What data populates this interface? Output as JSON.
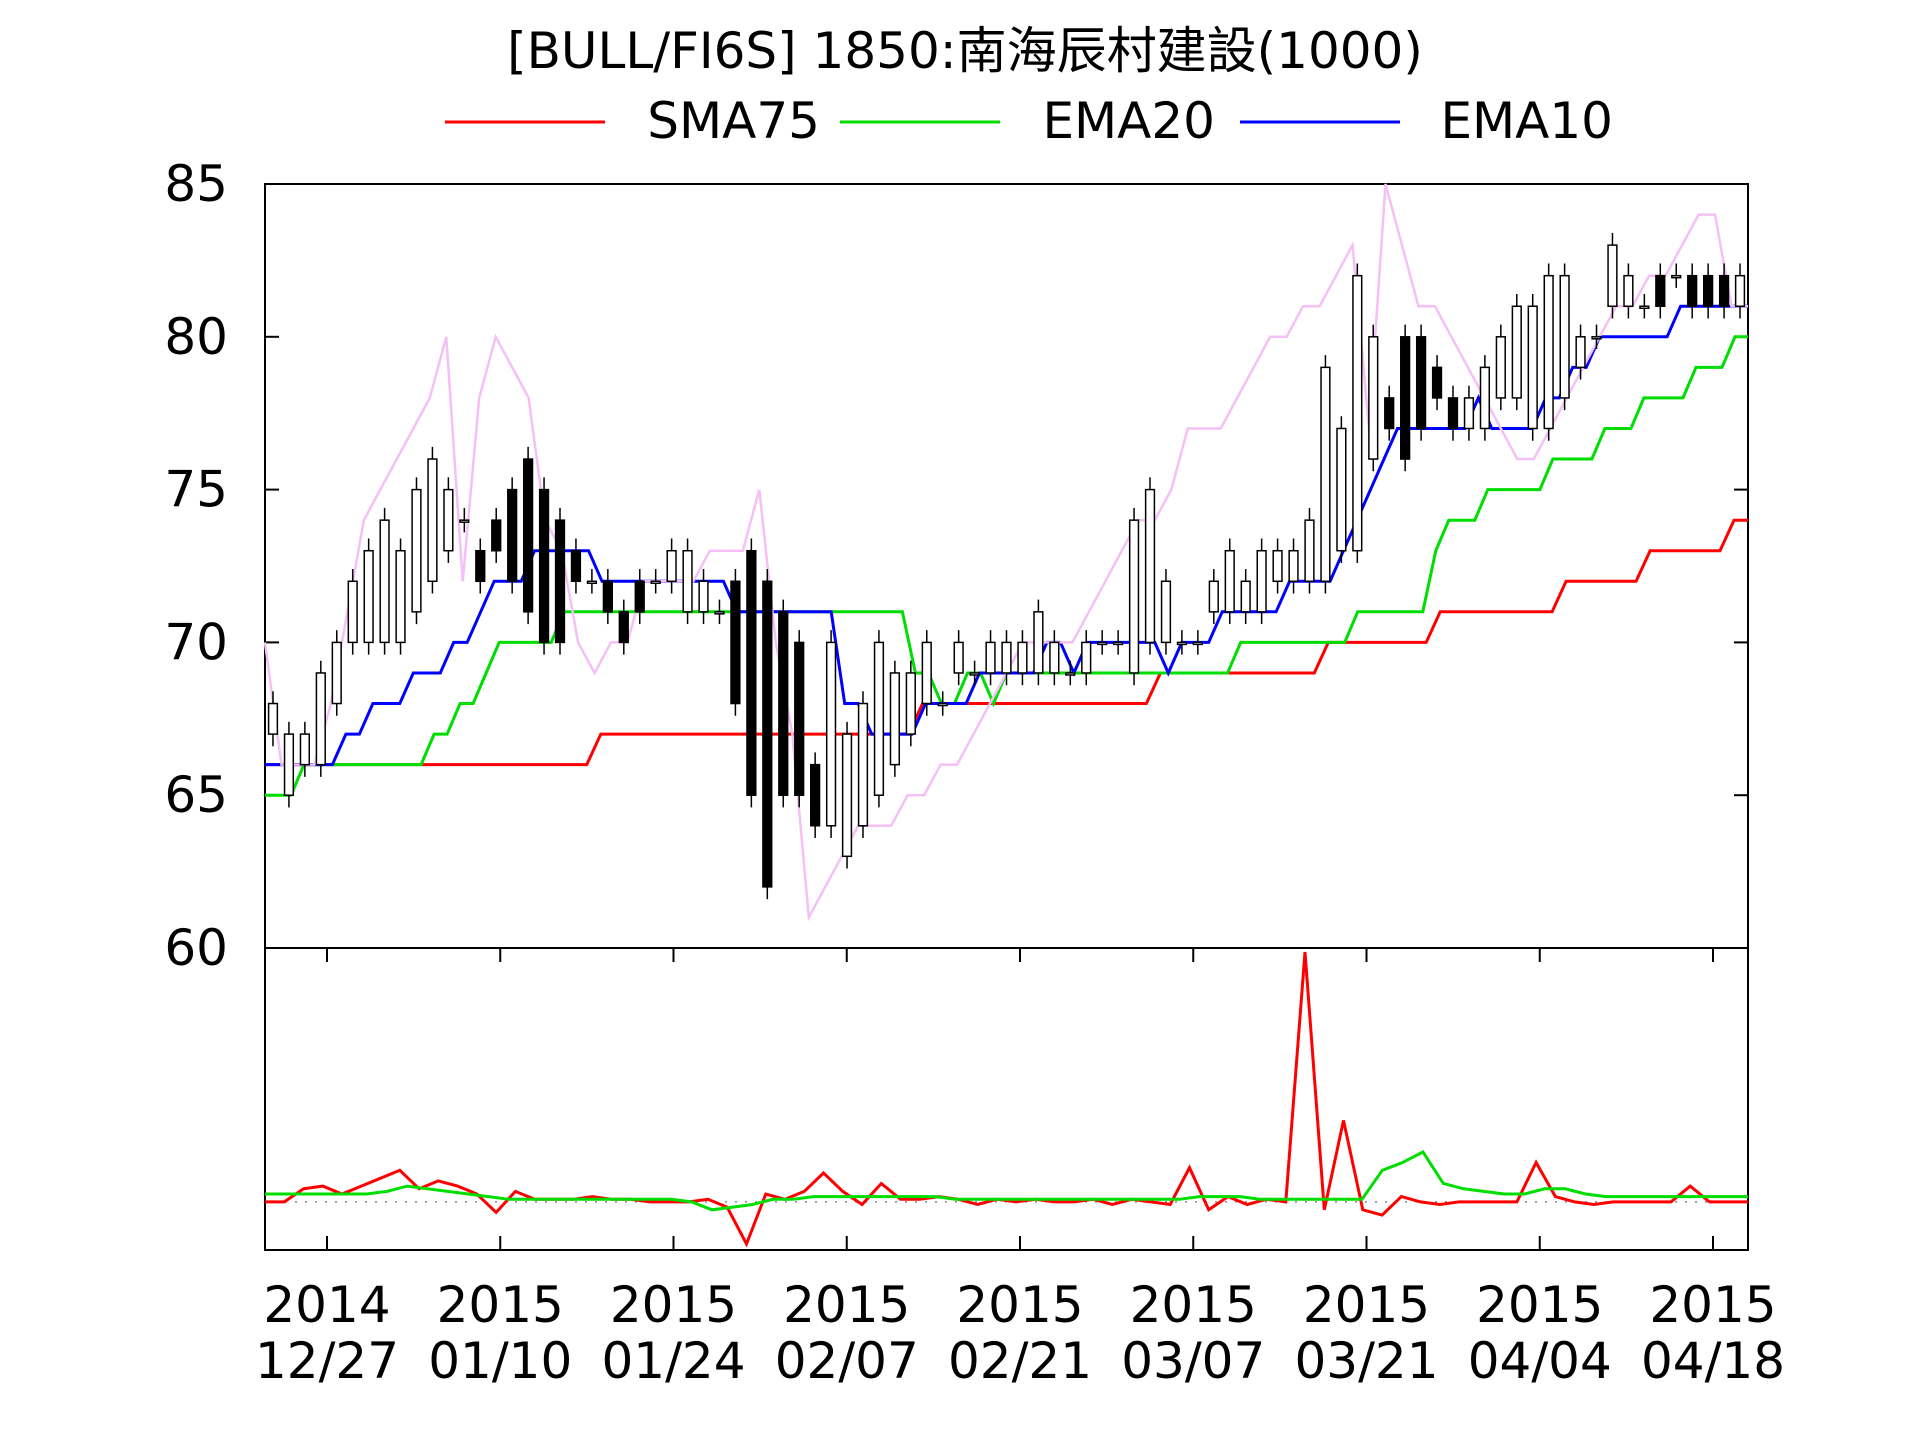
{
  "chart_data": {
    "type": "line",
    "title": "[BULL/FI6S] 1850:南海辰村建設(1000)",
    "price_panel": {
      "ylim": [
        60,
        85
      ],
      "yticks": [
        60,
        65,
        70,
        75,
        80,
        85
      ],
      "series": [
        {
          "name": "SMA75",
          "color": "#ff0000",
          "values": [
            66,
            66,
            66,
            66,
            66,
            66,
            66,
            66,
            66,
            66,
            66,
            66,
            66,
            66,
            66,
            66,
            66,
            66,
            66,
            66,
            66,
            66,
            66,
            66,
            67,
            67,
            67,
            67,
            67,
            67,
            67,
            67,
            67,
            67,
            67,
            67,
            67,
            67,
            67,
            67,
            67,
            67,
            67,
            67,
            67,
            67,
            67,
            68,
            68,
            68,
            68,
            68,
            68,
            68,
            68,
            68,
            68,
            68,
            68,
            68,
            68,
            68,
            68,
            68,
            69,
            69,
            69,
            69,
            69,
            69,
            69,
            69,
            69,
            69,
            69,
            69,
            70,
            70,
            70,
            70,
            70,
            70,
            70,
            70,
            71,
            71,
            71,
            71,
            71,
            71,
            71,
            71,
            71,
            72,
            72,
            72,
            72,
            72,
            72,
            73,
            73,
            73,
            73,
            73,
            73,
            74,
            74
          ]
        },
        {
          "name": "EMA20",
          "color": "#00dd00",
          "values": [
            65,
            65,
            65,
            66,
            66,
            66,
            66,
            66,
            66,
            66,
            66,
            66,
            66,
            67,
            67,
            68,
            68,
            69,
            70,
            70,
            70,
            70,
            70,
            71,
            71,
            71,
            71,
            71,
            71,
            71,
            71,
            71,
            71,
            71,
            71,
            71,
            71,
            71,
            71,
            71,
            71,
            71,
            71,
            71,
            71,
            71,
            71,
            71,
            71,
            71,
            69,
            69,
            68,
            68,
            69,
            69,
            68,
            69,
            69,
            69,
            69,
            69,
            69,
            69,
            69,
            69,
            69,
            69,
            69,
            69,
            69,
            69,
            69,
            69,
            69,
            70,
            70,
            70,
            70,
            70,
            70,
            70,
            70,
            70,
            71,
            71,
            71,
            71,
            71,
            71,
            73,
            74,
            74,
            74,
            75,
            75,
            75,
            75,
            75,
            76,
            76,
            76,
            76,
            77,
            77,
            77,
            78,
            78,
            78,
            78,
            79,
            79,
            79,
            80,
            80
          ]
        },
        {
          "name": "EMA10",
          "color": "#0000ff",
          "values": [
            66,
            66,
            66,
            66,
            66,
            66,
            67,
            67,
            68,
            68,
            68,
            69,
            69,
            69,
            70,
            70,
            71,
            72,
            72,
            72,
            73,
            73,
            73,
            73,
            73,
            72,
            72,
            72,
            72,
            72,
            72,
            72,
            72,
            72,
            72,
            71,
            71,
            71,
            71,
            71,
            71,
            71,
            71,
            68,
            68,
            67,
            67,
            67,
            67,
            68,
            68,
            68,
            68,
            69,
            69,
            69,
            69,
            69,
            70,
            70,
            69,
            70,
            70,
            70,
            70,
            70,
            70,
            69,
            70,
            70,
            70,
            71,
            71,
            71,
            71,
            71,
            72,
            72,
            72,
            72,
            73,
            74,
            75,
            76,
            77,
            77,
            77,
            77,
            77,
            77,
            78,
            77,
            77,
            77,
            77,
            78,
            78,
            79,
            79,
            80,
            80,
            80,
            80,
            80,
            80,
            81,
            81,
            81,
            81,
            81,
            81
          ]
        },
        {
          "name": "",
          "color": "#f5c0f5",
          "values": [
            70,
            66,
            66,
            66,
            68,
            71,
            74,
            75,
            76,
            77,
            78,
            80,
            72,
            78,
            80,
            79,
            78,
            74,
            73,
            70,
            69,
            70,
            70,
            72,
            72,
            72,
            72,
            73,
            73,
            73,
            75,
            70,
            67,
            61,
            62,
            63,
            64,
            64,
            64,
            65,
            65,
            66,
            66,
            67,
            68,
            69,
            70,
            70,
            70,
            70,
            71,
            72,
            73,
            74,
            74,
            75,
            77,
            77,
            77,
            78,
            79,
            80,
            80,
            81,
            81,
            82,
            83,
            77,
            85,
            83,
            81,
            81,
            80,
            79,
            78,
            77,
            76,
            76,
            77,
            78,
            79,
            80,
            81,
            81,
            82,
            82,
            83,
            84,
            84,
            81,
            81
          ]
        }
      ],
      "candles": {
        "color_up": "#ffffff",
        "color_down": "#000000",
        "open": [
          67,
          65,
          66,
          66,
          68,
          70,
          70,
          70,
          70,
          71,
          72,
          73,
          74,
          73,
          74,
          75,
          76,
          75,
          74,
          73,
          72,
          72,
          71,
          72,
          72,
          72,
          71,
          71,
          71,
          72,
          73,
          72,
          71,
          70,
          66,
          64,
          63,
          64,
          65,
          66,
          67,
          68,
          68,
          69,
          69,
          69,
          69,
          69,
          69,
          69,
          69,
          69,
          70,
          70,
          69,
          70,
          70,
          70,
          70,
          71,
          71,
          71,
          71,
          72,
          72,
          72,
          72,
          73,
          73,
          76,
          78,
          80,
          80,
          79,
          78,
          77,
          77,
          78,
          78,
          77,
          77,
          78,
          79,
          80,
          81,
          81,
          81,
          82,
          82,
          82,
          82,
          82,
          81
        ],
        "close": [
          68,
          67,
          67,
          69,
          70,
          72,
          73,
          74,
          73,
          75,
          76,
          75,
          74,
          72,
          73,
          72,
          71,
          70,
          70,
          72,
          72,
          71,
          70,
          71,
          72,
          73,
          73,
          72,
          71,
          68,
          65,
          62,
          65,
          65,
          64,
          70,
          67,
          68,
          70,
          69,
          69,
          70,
          68,
          70,
          69,
          70,
          70,
          70,
          71,
          70,
          69,
          70,
          70,
          70,
          74,
          75,
          72,
          70,
          70,
          72,
          73,
          72,
          73,
          73,
          73,
          74,
          79,
          77,
          82,
          80,
          77,
          76,
          77,
          78,
          77,
          78,
          79,
          80,
          81,
          81,
          82,
          82,
          80,
          80,
          83,
          82,
          81,
          81,
          82,
          81,
          81,
          81,
          82
        ]
      }
    },
    "indicator_panel": {
      "baseline": 0,
      "series": [
        {
          "name": "",
          "color": "#ff0000",
          "values": [
            0,
            0,
            0.5,
            0.6,
            0.3,
            0.6,
            0.9,
            1.2,
            0.5,
            0.8,
            0.6,
            0.3,
            -0.4,
            0.4,
            0.1,
            0.1,
            0.1,
            0.2,
            0.1,
            0.1,
            0,
            0,
            0,
            0.1,
            -0.2,
            -1.6,
            0.3,
            0.1,
            0.4,
            1.1,
            0.4,
            -0.1,
            0.7,
            0.1,
            0.1,
            0.2,
            0.1,
            -0.1,
            0.1,
            0,
            0.1,
            0,
            0,
            0.1,
            -0.1,
            0.1,
            0,
            -0.1,
            1.3,
            -0.3,
            0.2,
            -0.1,
            0.1,
            0,
            9.5,
            -0.3,
            3.1,
            -0.3,
            -0.5,
            0.2,
            0,
            -0.1,
            0,
            0,
            0,
            0,
            1.5,
            0.2,
            0,
            -0.1,
            0,
            0,
            0,
            0,
            0.6,
            0,
            0,
            0
          ]
        },
        {
          "name": "",
          "color": "#00dd00",
          "values": [
            0.3,
            0.3,
            0.3,
            0.3,
            0.3,
            0.3,
            0.4,
            0.6,
            0.5,
            0.4,
            0.3,
            0.2,
            0.1,
            0.1,
            0.1,
            0.1,
            0.1,
            0.1,
            0.1,
            0.1,
            0.1,
            0,
            -0.3,
            -0.2,
            -0.1,
            0.1,
            0.1,
            0.2,
            0.2,
            0.2,
            0.2,
            0.2,
            0.2,
            0.2,
            0.1,
            0.1,
            0.1,
            0.1,
            0.1,
            0.1,
            0.1,
            0.1,
            0.1,
            0.1,
            0.1,
            0.1,
            0.2,
            0.2,
            0.2,
            0.1,
            0.1,
            0.1,
            0.1,
            0.1,
            0.1,
            1.2,
            1.5,
            1.9,
            0.7,
            0.5,
            0.4,
            0.3,
            0.3,
            0.5,
            0.5,
            0.3,
            0.2,
            0.2,
            0.2,
            0.2,
            0.2,
            0.2,
            0.2,
            0.2
          ]
        }
      ]
    },
    "x_ticks": [
      {
        "year": "2014",
        "date": "12/27"
      },
      {
        "year": "2015",
        "date": "01/10"
      },
      {
        "year": "2015",
        "date": "01/24"
      },
      {
        "year": "2015",
        "date": "02/07"
      },
      {
        "year": "2015",
        "date": "02/21"
      },
      {
        "year": "2015",
        "date": "03/07"
      },
      {
        "year": "2015",
        "date": "03/21"
      },
      {
        "year": "2015",
        "date": "04/04"
      },
      {
        "year": "2015",
        "date": "04/18"
      }
    ],
    "legend": [
      {
        "label": "SMA75",
        "color": "#ff0000"
      },
      {
        "label": "EMA20",
        "color": "#00dd00"
      },
      {
        "label": "EMA10",
        "color": "#0000ff"
      }
    ],
    "legend_position": "top",
    "grid": false
  }
}
